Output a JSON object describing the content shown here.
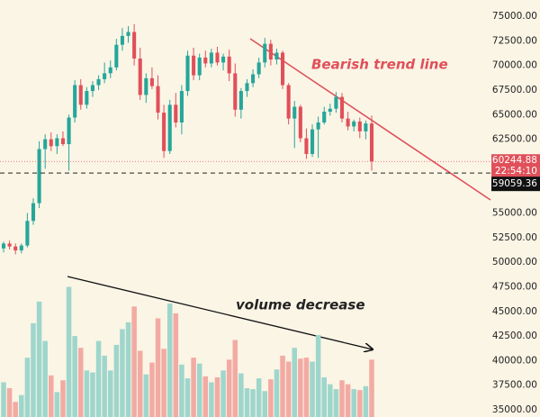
{
  "chart_data": {
    "type": "candlestick",
    "up_color": "#26a69a",
    "down_color": "#e0505a",
    "volume_up_color": "#9fd6cc",
    "volume_down_color": "#f2aba3",
    "ylim": [
      34270,
      76650
    ],
    "yticks": [
      {
        "value": 35000,
        "label": "35000.00"
      },
      {
        "value": 37500,
        "label": "37500.00"
      },
      {
        "value": 40000,
        "label": "40000.00"
      },
      {
        "value": 42500,
        "label": "42500.00"
      },
      {
        "value": 45000,
        "label": "45000.00"
      },
      {
        "value": 47500,
        "label": "47500.00"
      },
      {
        "value": 50000,
        "label": "50000.00"
      },
      {
        "value": 52500,
        "label": "52500.00"
      },
      {
        "value": 55000,
        "label": "55000.00"
      },
      {
        "value": 57500,
        "label": "57500.00"
      },
      {
        "value": 60000,
        "label": "60000.00"
      },
      {
        "value": 62500,
        "label": "62500.00"
      },
      {
        "value": 65000,
        "label": "65000.00"
      },
      {
        "value": 67500,
        "label": "67500.00"
      },
      {
        "value": 70000,
        "label": "70000.00"
      },
      {
        "value": 72500,
        "label": "72500.00"
      },
      {
        "value": 75000,
        "label": "75000.00"
      }
    ],
    "candles": [
      [
        51400,
        52100,
        51000,
        51900
      ],
      [
        51900,
        52200,
        51300,
        51600
      ],
      [
        51600,
        51900,
        50800,
        51200
      ],
      [
        51200,
        51900,
        50900,
        51700
      ],
      [
        51700,
        55000,
        51500,
        54200
      ],
      [
        54200,
        56500,
        53800,
        56000
      ],
      [
        56000,
        62300,
        55500,
        61500
      ],
      [
        61500,
        63000,
        59500,
        62500
      ],
      [
        62500,
        63200,
        61300,
        61800
      ],
      [
        61800,
        63000,
        61000,
        62600
      ],
      [
        62600,
        63300,
        61800,
        62000
      ],
      [
        62000,
        65000,
        59300,
        64700
      ],
      [
        64700,
        68500,
        64200,
        68000
      ],
      [
        68000,
        68600,
        65500,
        66000
      ],
      [
        66000,
        67800,
        65600,
        67400
      ],
      [
        67400,
        68400,
        66800,
        68000
      ],
      [
        68000,
        69000,
        67500,
        68600
      ],
      [
        68600,
        70300,
        68200,
        69200
      ],
      [
        69200,
        70500,
        68700,
        69800
      ],
      [
        69800,
        72700,
        69500,
        72100
      ],
      [
        72100,
        73800,
        71500,
        73000
      ],
      [
        73000,
        74000,
        72300,
        73400
      ],
      [
        73400,
        74200,
        70000,
        70700
      ],
      [
        70700,
        71800,
        66500,
        67000
      ],
      [
        67000,
        69200,
        66200,
        68700
      ],
      [
        68700,
        69800,
        67600,
        67900
      ],
      [
        67900,
        69000,
        64500,
        65200
      ],
      [
        65200,
        66000,
        60600,
        61300
      ],
      [
        61300,
        66500,
        61000,
        66000
      ],
      [
        66000,
        67200,
        63700,
        64200
      ],
      [
        64200,
        68000,
        63000,
        67400
      ],
      [
        67400,
        71500,
        66900,
        71000
      ],
      [
        71000,
        71800,
        68500,
        69000
      ],
      [
        69000,
        71200,
        68500,
        70800
      ],
      [
        70800,
        71500,
        69800,
        70200
      ],
      [
        70200,
        71700,
        69800,
        71300
      ],
      [
        71300,
        71900,
        70000,
        70300
      ],
      [
        70300,
        71200,
        69500,
        70900
      ],
      [
        70900,
        71600,
        68400,
        69200
      ],
      [
        69200,
        70200,
        64800,
        65500
      ],
      [
        65500,
        67700,
        64600,
        67400
      ],
      [
        67400,
        68600,
        66800,
        68200
      ],
      [
        68200,
        69600,
        67800,
        69100
      ],
      [
        69100,
        70800,
        68700,
        70300
      ],
      [
        70300,
        72800,
        69800,
        72200
      ],
      [
        72200,
        72600,
        70000,
        70600
      ],
      [
        70600,
        71700,
        70100,
        71300
      ],
      [
        71300,
        71500,
        67600,
        68000
      ],
      [
        68000,
        68200,
        64000,
        64600
      ],
      [
        64600,
        66400,
        61600,
        65800
      ],
      [
        65800,
        66000,
        62200,
        62600
      ],
      [
        62600,
        63600,
        60500,
        61000
      ],
      [
        61000,
        64000,
        60700,
        63500
      ],
      [
        63500,
        64800,
        60600,
        64200
      ],
      [
        64200,
        65800,
        64000,
        65300
      ],
      [
        65300,
        66100,
        64900,
        65600
      ],
      [
        65600,
        67300,
        65200,
        66800
      ],
      [
        66800,
        67200,
        64200,
        64600
      ],
      [
        64600,
        65300,
        63400,
        63800
      ],
      [
        63800,
        64500,
        63300,
        64300
      ],
      [
        64300,
        64700,
        62600,
        63300
      ],
      [
        63300,
        64400,
        62500,
        64100
      ],
      [
        64100,
        64900,
        59300,
        60244.88
      ]
    ],
    "volume": [
      37800,
      37200,
      35800,
      36500,
      40300,
      43800,
      46000,
      42000,
      38500,
      36800,
      38000,
      47500,
      42500,
      41300,
      39000,
      38800,
      42000,
      40500,
      39000,
      41600,
      43200,
      43900,
      45500,
      41000,
      38600,
      39800,
      44300,
      41200,
      45800,
      44800,
      39600,
      38200,
      40300,
      39700,
      38400,
      37800,
      38300,
      39000,
      40100,
      42100,
      38700,
      37200,
      37100,
      38200,
      36900,
      38100,
      39100,
      40500,
      39900,
      41300,
      40200,
      40300,
      39900,
      42600,
      38300,
      37600,
      37100,
      38000,
      37600,
      37100,
      37000,
      37400,
      40100
    ],
    "last_price": {
      "value": 60244.88,
      "label": "60244.88"
    },
    "countdown": "22:54:10",
    "price_line": {
      "value": 59059.36,
      "label": "59059.36"
    },
    "annotations": [
      "Bearish trend line",
      "volume decrease"
    ]
  }
}
